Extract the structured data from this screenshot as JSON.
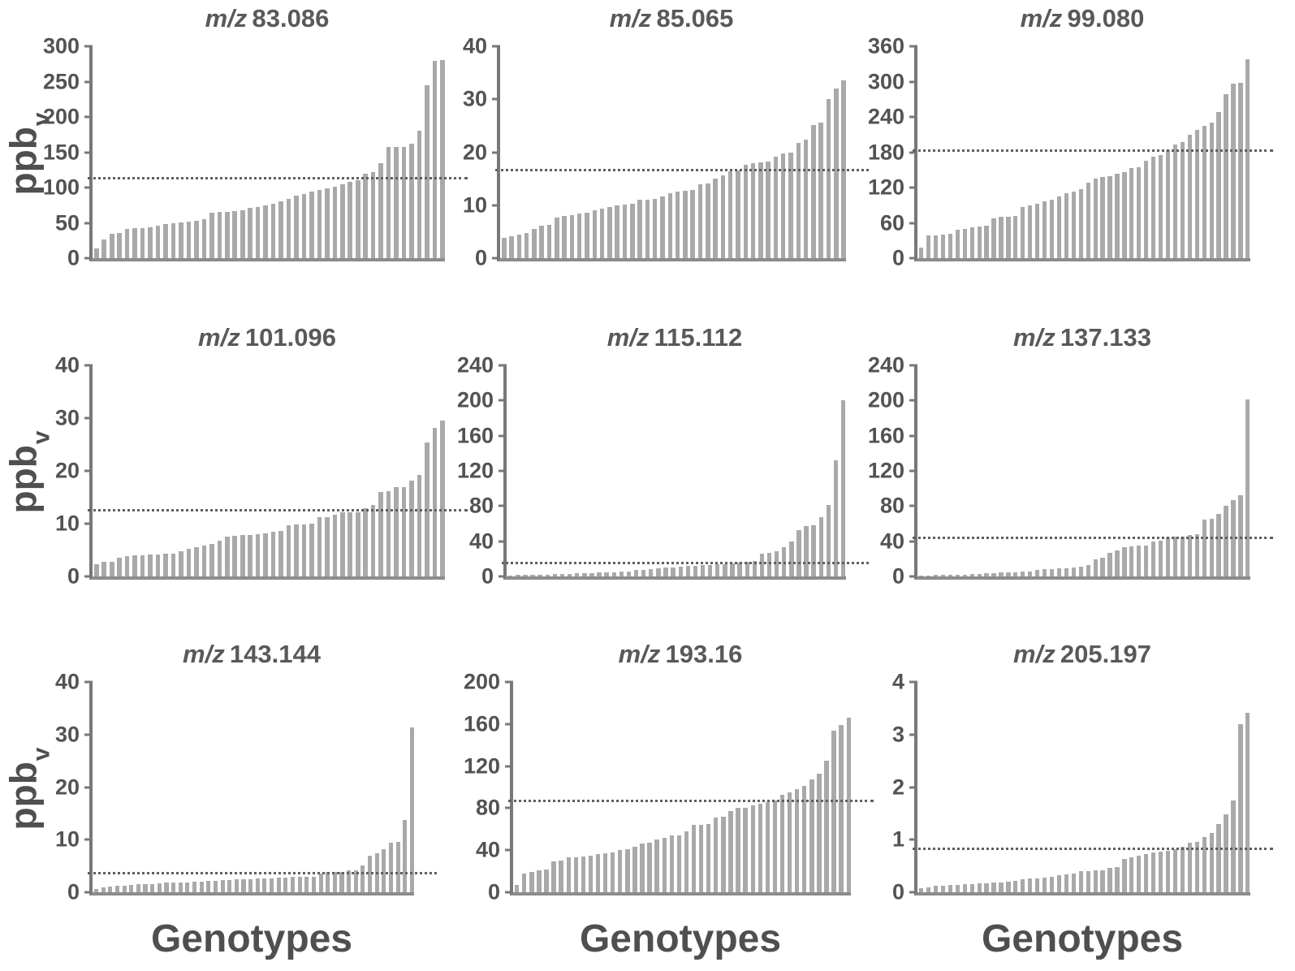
{
  "figure": {
    "description": "Nine sorted bar charts of VOC concentrations across genotypes"
  },
  "ylabel": {
    "text": "ppb",
    "sub": "v"
  },
  "xlabel": "Genotypes",
  "colors": {
    "bar": "#a9a9a9",
    "axis": "#787878",
    "mean_line": "#5f5f5f",
    "text": "#595959",
    "background": "#ffffff"
  },
  "chart_data": [
    {
      "type": "bar",
      "title_prefix": "m/z",
      "title": "83.086",
      "ylim": [
        0,
        300
      ],
      "ytick_step": 50,
      "mean_line": 115,
      "grid": false,
      "legend": "none",
      "xlabel": "Genotypes",
      "ylabel": "ppbv",
      "values": [
        14,
        26,
        34,
        36,
        41,
        42,
        43,
        44,
        46,
        48,
        50,
        51,
        52,
        53,
        55,
        64,
        65,
        66,
        67,
        68,
        71,
        73,
        75,
        77,
        80,
        84,
        88,
        91,
        94,
        97,
        99,
        101,
        105,
        108,
        110,
        120,
        122,
        135,
        157,
        157,
        158,
        162,
        181,
        245,
        279,
        281
      ]
    },
    {
      "type": "bar",
      "title_prefix": "m/z",
      "title": "85.065",
      "ylim": [
        0,
        40
      ],
      "ytick_step": 10,
      "mean_line": 16.8,
      "grid": false,
      "legend": "none",
      "xlabel": "Genotypes",
      "ylabel": "ppbv",
      "values": [
        3.8,
        4.2,
        4.5,
        4.7,
        5.5,
        6.2,
        6.3,
        7.6,
        7.9,
        8.2,
        8.4,
        8.6,
        9.1,
        9.3,
        9.7,
        9.9,
        10.1,
        10.3,
        11.0,
        11.1,
        11.2,
        11.7,
        12.3,
        12.5,
        12.7,
        12.8,
        13.9,
        14.1,
        15.0,
        15.7,
        16.4,
        16.6,
        17.7,
        18.0,
        18.1,
        18.2,
        19.1,
        19.7,
        20.0,
        21.7,
        22.4,
        25.2,
        25.6,
        30.1,
        32.0,
        33.5
      ]
    },
    {
      "type": "bar",
      "title_prefix": "m/z",
      "title": "99.080",
      "ylim": [
        0,
        360
      ],
      "ytick_step": 60,
      "mean_line": 185,
      "grid": false,
      "legend": "none",
      "xlabel": "Genotypes",
      "ylabel": "ppbv",
      "values": [
        18,
        38,
        38,
        40,
        41,
        48,
        50,
        53,
        54,
        55,
        68,
        70,
        71,
        72,
        87,
        90,
        93,
        97,
        100,
        105,
        110,
        113,
        117,
        128,
        135,
        138,
        140,
        143,
        146,
        153,
        155,
        165,
        173,
        175,
        183,
        193,
        197,
        210,
        218,
        225,
        230,
        248,
        278,
        297,
        298,
        338
      ]
    },
    {
      "type": "bar",
      "title_prefix": "m/z",
      "title": "101.096",
      "ylim": [
        0,
        40
      ],
      "ytick_step": 10,
      "mean_line": 12.7,
      "grid": false,
      "legend": "none",
      "xlabel": "Genotypes",
      "ylabel": "ppbv",
      "values": [
        2.3,
        2.7,
        2.7,
        3.6,
        3.9,
        4.0,
        4.0,
        4.1,
        4.1,
        4.3,
        4.3,
        4.7,
        5.2,
        5.6,
        5.8,
        6.1,
        6.7,
        7.5,
        7.7,
        7.8,
        7.9,
        8.0,
        8.2,
        8.4,
        8.6,
        9.7,
        9.9,
        9.9,
        10.0,
        11.2,
        11.2,
        11.7,
        12.1,
        12.2,
        12.2,
        13.0,
        13.5,
        16.0,
        16.2,
        17.0,
        17.0,
        18.2,
        19.2,
        25.4,
        28.2,
        29.5
      ]
    },
    {
      "type": "bar",
      "title_prefix": "m/z",
      "title": "115.112",
      "ylim": [
        0,
        240
      ],
      "ytick_step": 40,
      "mean_line": 17,
      "grid": false,
      "legend": "none",
      "xlabel": "Genotypes",
      "ylabel": "ppbv",
      "values": [
        1,
        2,
        2,
        2,
        2,
        2,
        3,
        3,
        3,
        4,
        4,
        4,
        5,
        5,
        5,
        6,
        6,
        7,
        7,
        8,
        9,
        10,
        10,
        11,
        12,
        12,
        13,
        13,
        14,
        14,
        15,
        16,
        17,
        18,
        26,
        27,
        29,
        33,
        40,
        53,
        57,
        58,
        67,
        81,
        132,
        200
      ]
    },
    {
      "type": "bar",
      "title_prefix": "m/z",
      "title": "137.133",
      "ylim": [
        0,
        240
      ],
      "ytick_step": 40,
      "mean_line": 45,
      "grid": false,
      "legend": "none",
      "xlabel": "Genotypes",
      "ylabel": "ppbv",
      "values": [
        1,
        1,
        2,
        2,
        2,
        2,
        2,
        3,
        3,
        4,
        4,
        5,
        5,
        5,
        6,
        6,
        7,
        8,
        8,
        9,
        9,
        10,
        11,
        13,
        19,
        21,
        27,
        30,
        33,
        34,
        35,
        35,
        40,
        41,
        44,
        45,
        45,
        47,
        48,
        65,
        66,
        71,
        80,
        87,
        92,
        201
      ]
    },
    {
      "type": "bar",
      "title_prefix": "m/z",
      "title": "143.144",
      "ylim": [
        0,
        40
      ],
      "ytick_step": 10,
      "mean_line": 3.8,
      "grid": false,
      "legend": "none",
      "xlabel": "Genotypes",
      "ylabel": "ppbv",
      "values": [
        0.6,
        1.0,
        1.1,
        1.3,
        1.3,
        1.4,
        1.5,
        1.5,
        1.6,
        1.7,
        1.8,
        1.8,
        1.8,
        1.9,
        2.0,
        2.0,
        2.1,
        2.2,
        2.3,
        2.3,
        2.4,
        2.4,
        2.5,
        2.6,
        2.7,
        2.7,
        2.8,
        2.8,
        2.9,
        2.9,
        3.0,
        3.0,
        3.6,
        3.8,
        3.9,
        3.9,
        4.1,
        4.2,
        5.1,
        7.0,
        7.4,
        8.2,
        9.4,
        9.6,
        13.8,
        31.3
      ]
    },
    {
      "type": "bar",
      "title_prefix": "m/z",
      "title": "193.16",
      "ylim": [
        0,
        200
      ],
      "ytick_step": 40,
      "mean_line": 88,
      "grid": false,
      "legend": "none",
      "xlabel": "Genotypes",
      "ylabel": "ppbv",
      "values": [
        7,
        18,
        19,
        21,
        22,
        29,
        30,
        33,
        33,
        34,
        35,
        36,
        37,
        38,
        40,
        41,
        43,
        46,
        47,
        50,
        52,
        54,
        54,
        58,
        64,
        64,
        65,
        71,
        72,
        77,
        80,
        80,
        83,
        84,
        86,
        87,
        93,
        95,
        98,
        101,
        107,
        113,
        125,
        154,
        159,
        166
      ]
    },
    {
      "type": "bar",
      "title_prefix": "m/z",
      "title": "205.197",
      "ylim": [
        0,
        4
      ],
      "ytick_step": 1,
      "mean_line": 0.85,
      "grid": false,
      "legend": "none",
      "xlabel": "Genotypes",
      "ylabel": "ppbv",
      "values": [
        0.07,
        0.09,
        0.12,
        0.13,
        0.14,
        0.14,
        0.15,
        0.15,
        0.17,
        0.17,
        0.18,
        0.19,
        0.2,
        0.22,
        0.25,
        0.26,
        0.26,
        0.28,
        0.3,
        0.33,
        0.34,
        0.35,
        0.4,
        0.4,
        0.41,
        0.42,
        0.46,
        0.48,
        0.63,
        0.66,
        0.69,
        0.72,
        0.75,
        0.78,
        0.79,
        0.82,
        0.86,
        0.95,
        0.96,
        1.05,
        1.12,
        1.3,
        1.48,
        1.75,
        3.2,
        3.42
      ]
    }
  ]
}
